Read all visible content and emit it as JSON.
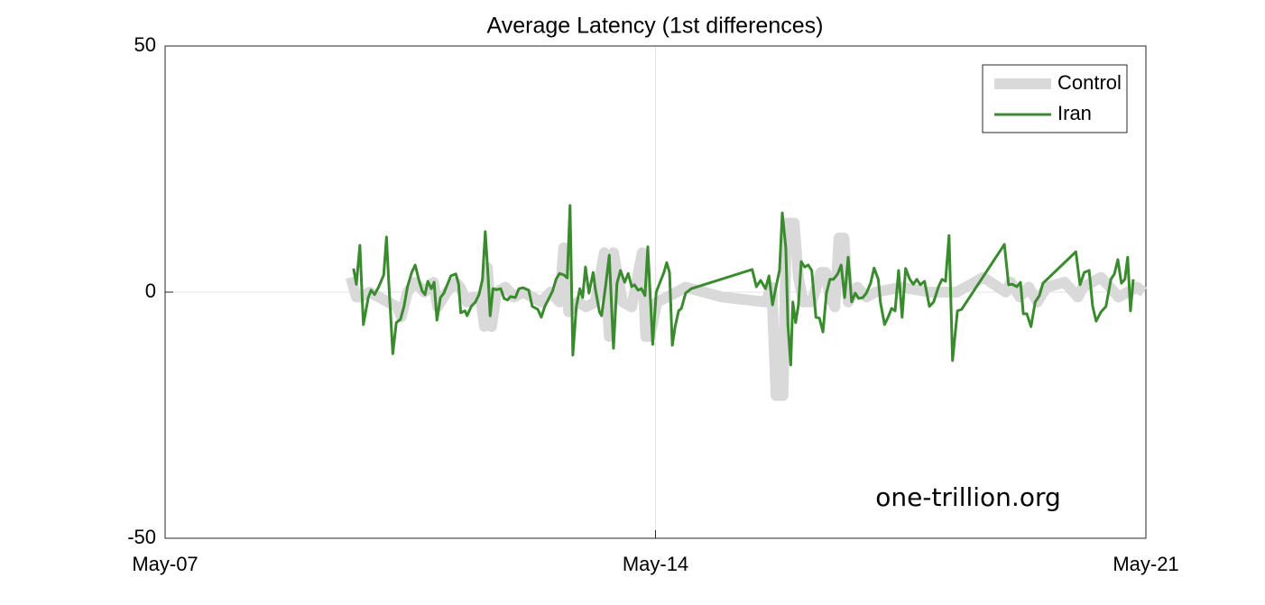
{
  "chart_data": {
    "type": "line",
    "title": "Average Latency (1st differences)",
    "xlim": [
      7,
      21
    ],
    "xticks": [
      {
        "value": 7,
        "label": "May-07"
      },
      {
        "value": 14,
        "label": "May-14"
      },
      {
        "value": 21,
        "label": "May-21"
      }
    ],
    "ylim": [
      -50,
      50
    ],
    "yticks": [
      -50,
      0,
      50
    ],
    "grid": true,
    "legend": "upper right",
    "annotation": "one-trillion.org",
    "series": [
      {
        "name": "Control",
        "color": "#d9d9d9",
        "width": 12,
        "x": [
          9.65,
          9.73,
          9.79,
          9.92,
          10.05,
          10.18,
          10.31,
          10.37,
          10.46,
          10.57,
          10.7,
          10.83,
          10.89,
          11.02,
          11.15,
          11.21,
          11.31,
          11.4,
          11.5,
          11.56,
          11.6,
          11.66,
          11.73,
          11.86,
          11.98,
          12.11,
          12.24,
          12.37,
          12.5,
          12.63,
          12.69,
          12.76,
          12.89,
          13.01,
          13.14,
          13.27,
          13.34,
          13.4,
          13.53,
          13.66,
          13.81,
          13.86,
          13.92,
          14.02,
          14.17,
          14.43,
          14.95,
          15.57,
          15.66,
          15.72,
          15.82,
          15.87,
          15.98,
          16.04,
          16.11,
          16.23,
          16.36,
          16.43,
          16.49,
          16.56,
          16.62,
          16.69,
          16.75,
          16.88,
          17.01,
          17.14,
          17.52,
          17.91,
          18.3,
          18.68,
          19.0,
          19.07,
          19.2,
          19.33,
          19.45,
          19.58,
          19.84,
          20.03,
          20.1,
          20.36,
          20.61,
          20.87,
          20.97
        ],
        "values": [
          3,
          -1,
          -1,
          0,
          -1,
          -2,
          -3,
          -5,
          0,
          2,
          0,
          2,
          -3,
          0,
          2,
          1,
          -2,
          -1,
          -1,
          -7,
          5,
          -7,
          0,
          1,
          -1,
          0,
          -1,
          -2,
          0,
          -2,
          9,
          -4,
          -2,
          -3,
          -2,
          8,
          -9,
          8,
          -2,
          -3,
          8,
          -9,
          -9,
          -2,
          -1,
          1,
          -1,
          -2,
          1,
          -21,
          -21,
          14,
          14,
          3,
          -2,
          -2,
          4,
          4,
          -1,
          -3,
          11,
          11,
          -2,
          1,
          -1,
          0,
          1,
          0,
          0,
          3,
          0,
          2,
          -1,
          1,
          -2,
          1,
          2,
          -1,
          1,
          3,
          -1,
          1,
          0
        ]
      },
      {
        "name": "Iran",
        "color": "#3a8a2e",
        "width": 3,
        "x": [
          9.69,
          9.73,
          9.78,
          9.83,
          9.9,
          9.94,
          9.99,
          10.05,
          10.12,
          10.16,
          10.19,
          10.25,
          10.3,
          10.36,
          10.41,
          10.46,
          10.52,
          10.57,
          10.62,
          10.67,
          10.71,
          10.75,
          10.8,
          10.84,
          10.88,
          10.93,
          10.98,
          11.03,
          11.08,
          11.15,
          11.19,
          11.22,
          11.28,
          11.31,
          11.37,
          11.43,
          11.48,
          11.53,
          11.57,
          11.61,
          11.64,
          11.68,
          11.73,
          11.79,
          11.84,
          11.89,
          11.93,
          12.0,
          12.05,
          12.11,
          12.19,
          12.24,
          12.32,
          12.37,
          12.42,
          12.47,
          12.53,
          12.58,
          12.63,
          12.69,
          12.74,
          12.78,
          12.82,
          12.87,
          12.92,
          12.96,
          13.0,
          13.05,
          13.11,
          13.14,
          13.2,
          13.23,
          13.29,
          13.34,
          13.4,
          13.45,
          13.5,
          13.56,
          13.61,
          13.66,
          13.7,
          13.75,
          13.8,
          13.85,
          13.89,
          13.96,
          14.01,
          14.07,
          14.12,
          14.16,
          14.2,
          14.24,
          14.28,
          14.33,
          14.37,
          14.43,
          14.51,
          15.38,
          15.44,
          15.5,
          15.57,
          15.62,
          15.67,
          15.72,
          15.77,
          15.81,
          15.86,
          15.89,
          15.93,
          15.96,
          16.0,
          16.04,
          16.08,
          16.13,
          16.18,
          16.23,
          16.29,
          16.34,
          16.39,
          16.44,
          16.49,
          16.54,
          16.6,
          16.65,
          16.7,
          16.75,
          16.8,
          16.85,
          16.9,
          16.96,
          17.01,
          17.07,
          17.12,
          17.18,
          17.21,
          17.27,
          17.32,
          17.37,
          17.42,
          17.47,
          17.52,
          17.57,
          17.63,
          17.68,
          17.73,
          17.78,
          17.84,
          17.91,
          17.97,
          18.04,
          18.09,
          18.14,
          18.19,
          18.24,
          18.31,
          18.37,
          18.98,
          19.04,
          19.09,
          19.16,
          19.21,
          19.25,
          19.3,
          19.36,
          19.42,
          19.48,
          19.53,
          20.0,
          20.06,
          20.12,
          20.19,
          20.24,
          20.29,
          20.36,
          20.43,
          20.5,
          20.55,
          20.6,
          20.65,
          20.7,
          20.74,
          20.78,
          20.82
        ],
        "values": [
          4.8,
          1.6,
          9.5,
          -6.6,
          -1.1,
          0.4,
          -0.5,
          1.1,
          3.5,
          11.2,
          2.6,
          -12.5,
          -6.2,
          -5.5,
          -2.9,
          1.1,
          4,
          5.5,
          2.6,
          0.2,
          -0.5,
          2.2,
          0.7,
          2,
          -5.7,
          -1.1,
          -0.2,
          1.6,
          3.3,
          3.7,
          1.6,
          -4.2,
          -3.8,
          -4.8,
          -2.9,
          -2,
          -0.5,
          2.6,
          12.3,
          3.3,
          -4.8,
          0.7,
          0.5,
          0.7,
          -1.3,
          -1.6,
          -0.9,
          -1.1,
          0.7,
          0.9,
          0.4,
          -2.9,
          -3.5,
          -5.1,
          -2.9,
          -1.5,
          0.2,
          2.6,
          3.8,
          3.5,
          2.9,
          17.6,
          -12.8,
          -2.9,
          0.7,
          -1.1,
          5.1,
          -0.2,
          4,
          0.7,
          -4,
          -4.8,
          1.5,
          7.5,
          -11.4,
          1.8,
          4.4,
          2,
          3.8,
          1.1,
          1.5,
          0.4,
          0.7,
          -0.7,
          9.2,
          -10.6,
          0,
          2.2,
          4,
          6,
          4,
          -10.8,
          -7,
          -3.8,
          -3.3,
          -0.2,
          0.7,
          4.6,
          1.1,
          2.4,
          0.7,
          3.3,
          -2.6,
          1.1,
          4.4,
          16.1,
          9,
          -6.6,
          -14.8,
          -2,
          -6.2,
          -2.6,
          6.2,
          5.1,
          5.5,
          4.4,
          -5.1,
          -5.3,
          -8.1,
          -0.2,
          2.6,
          2.6,
          3.7,
          5.5,
          -1.1,
          7.1,
          -2,
          -0.2,
          -1.3,
          -1.1,
          -0.2,
          1.8,
          4.9,
          2.6,
          -2,
          -6.6,
          -5.1,
          -3.3,
          -3.8,
          4.4,
          -5.1,
          4.8,
          2.6,
          1.6,
          2.6,
          1.5,
          2.2,
          -2.9,
          -2,
          1.1,
          2.6,
          2.2,
          11.5,
          -13.9,
          -3.8,
          -3.5,
          9.7,
          1.5,
          1.6,
          1.1,
          2,
          -4.4,
          -4.4,
          -7,
          -2,
          -0.7,
          1.8,
          8.2,
          1.5,
          4,
          4.4,
          -2.9,
          -5.9,
          -4,
          -2.9,
          2.6,
          3.7,
          6.6,
          1.8,
          2.6,
          7.1,
          -3.8,
          2.6
        ]
      }
    ]
  }
}
